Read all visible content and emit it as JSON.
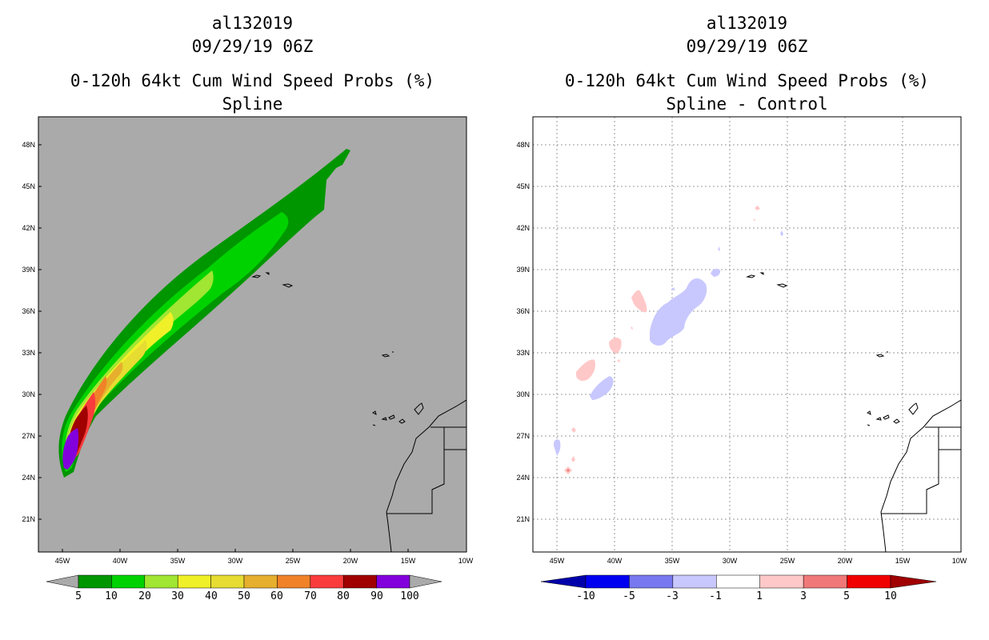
{
  "colors": {
    "land_gray": "#aaaaaa",
    "prob_5": "#009600",
    "prob_10": "#00d200",
    "prob_20": "#a0e632",
    "prob_30": "#f0f028",
    "prob_40": "#e6dc32",
    "prob_50": "#e6af2d",
    "prob_60": "#f08228",
    "prob_70": "#fa3c3c",
    "prob_80": "#a00000",
    "prob_90": "#8200dc",
    "diff_neg": "#c8c8ff",
    "diff_pos": "#ffc8c8",
    "diff_pos_strong": "#f07878"
  },
  "panels": [
    {
      "storm_id": "al132019",
      "datetime": "09/29/19 06Z",
      "product": "0-120h 64kt Cum Wind Speed Probs (%)",
      "subtitle": "Spline",
      "colorbar": {
        "labels": [
          "5",
          "10",
          "20",
          "30",
          "40",
          "50",
          "60",
          "70",
          "80",
          "90",
          "100"
        ],
        "colors": [
          "#009600",
          "#00d200",
          "#a0e632",
          "#f0f028",
          "#e6dc32",
          "#e6af2d",
          "#f08228",
          "#fa3c3c",
          "#a00000",
          "#8200dc"
        ]
      }
    },
    {
      "storm_id": "al132019",
      "datetime": "09/29/19 06Z",
      "product": "0-120h 64kt Cum Wind Speed Probs (%)",
      "subtitle": "Spline - Control",
      "colorbar": {
        "labels": [
          "-10",
          "-5",
          "-3",
          "-1",
          "1",
          "3",
          "5",
          "10"
        ],
        "colors": [
          "#0000aa",
          "#0000f0",
          "#7878f0",
          "#c8c8ff",
          "#ffffff",
          "#ffc8c8",
          "#f07878",
          "#f00000",
          "#a00000"
        ]
      }
    }
  ],
  "map": {
    "lat_labels": [
      "48N",
      "45N",
      "42N",
      "39N",
      "36N",
      "33N",
      "30N",
      "27N",
      "24N",
      "21N"
    ],
    "lon_labels": [
      "45W",
      "40W",
      "35W",
      "30W",
      "25W",
      "20W",
      "15W",
      "10W"
    ]
  }
}
